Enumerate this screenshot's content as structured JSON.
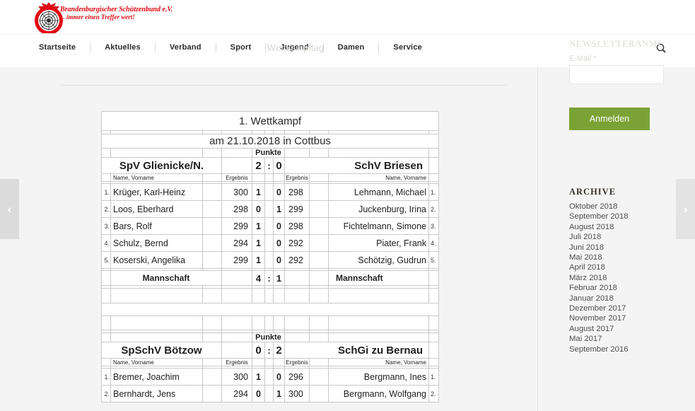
{
  "header": {
    "logo": {
      "line1": "Brandenburgischer Schützenbund e.V.",
      "line2": "... immer einen Treffer wert!",
      "color": "#e30613"
    },
    "nav": [
      "Startseite",
      "Aktuelles",
      "Verband",
      "Sport",
      "Jugend",
      "Damen",
      "Service"
    ],
    "ghost_title": "Wettkampftag",
    "search_icon": "magnifier"
  },
  "newsletter": {
    "heading": "NEWSLETTERANMELDUNG",
    "email_label": "E-Mail *",
    "email_value": "",
    "submit_label": "Anmelden",
    "button_color": "#7aa234"
  },
  "archive": {
    "heading": "ARCHIVE",
    "items": [
      "Oktober 2018",
      "September 2018",
      "August 2018",
      "Juli 2018",
      "Juni 2018",
      "Mai 2018",
      "April 2018",
      "März 2018",
      "Februar 2018",
      "Januar 2018",
      "Dezember 2017",
      "November 2017",
      "August 2017",
      "Mai 2017",
      "September 2016"
    ]
  },
  "carousel": {
    "prev_icon": "chevron-left",
    "next_icon": "chevron-right"
  },
  "scoreboard": {
    "labels": {
      "points": "Punkte",
      "name_col": "Name, Vorname",
      "result_col": "Ergebnis",
      "colon": ":"
    },
    "matches": [
      {
        "title": "1. Wettkampf",
        "date": "am 21.10.2018 in Cottbus",
        "team_left": "SpV Glienicke/N.",
        "team_right": "SchV Briesen",
        "score_left": "2",
        "score_right": "0",
        "rows": [
          {
            "rank": "1.",
            "name_left": "Krüger, Karl-Heinz",
            "result_left": "300",
            "point_left": "1",
            "point_right": "0",
            "result_right": "298",
            "name_right": "Lehmann, Michael"
          },
          {
            "rank": "2.",
            "name_left": "Loos, Eberhard",
            "result_left": "298",
            "point_left": "0",
            "point_right": "1",
            "result_right": "299",
            "name_right": "Juckenburg, Irina"
          },
          {
            "rank": "3.",
            "name_left": "Bars, Rolf",
            "result_left": "299",
            "point_left": "1",
            "point_right": "0",
            "result_right": "298",
            "name_right": "Fichtelmann, Simone"
          },
          {
            "rank": "4.",
            "name_left": "Schulz, Bernd",
            "result_left": "294",
            "point_left": "1",
            "point_right": "0",
            "result_right": "292",
            "name_right": "Piater, Frank"
          },
          {
            "rank": "5.",
            "name_left": "Koserski, Angelika",
            "result_left": "299",
            "point_left": "1",
            "point_right": "0",
            "result_right": "292",
            "name_right": "Schötzig, Gudrun"
          }
        ],
        "team_total": {
          "label_left": "Mannschaft",
          "score_left": "4",
          "score_right": "1",
          "label_right": "Mannschaft"
        }
      },
      {
        "team_left": "SpSchV Bötzow",
        "team_right": "SchGi zu Bernau",
        "score_left": "0",
        "score_right": "2",
        "rows": [
          {
            "rank": "1.",
            "name_left": "Bremer, Joachim",
            "result_left": "300",
            "point_left": "1",
            "point_right": "0",
            "result_right": "296",
            "name_right": "Bergmann, Ines"
          },
          {
            "rank": "2.",
            "name_left": "Bernhardt, Jens",
            "result_left": "294",
            "point_left": "0",
            "point_right": "1",
            "result_right": "300",
            "name_right": "Bergmann, Wolfgang"
          }
        ]
      }
    ]
  }
}
